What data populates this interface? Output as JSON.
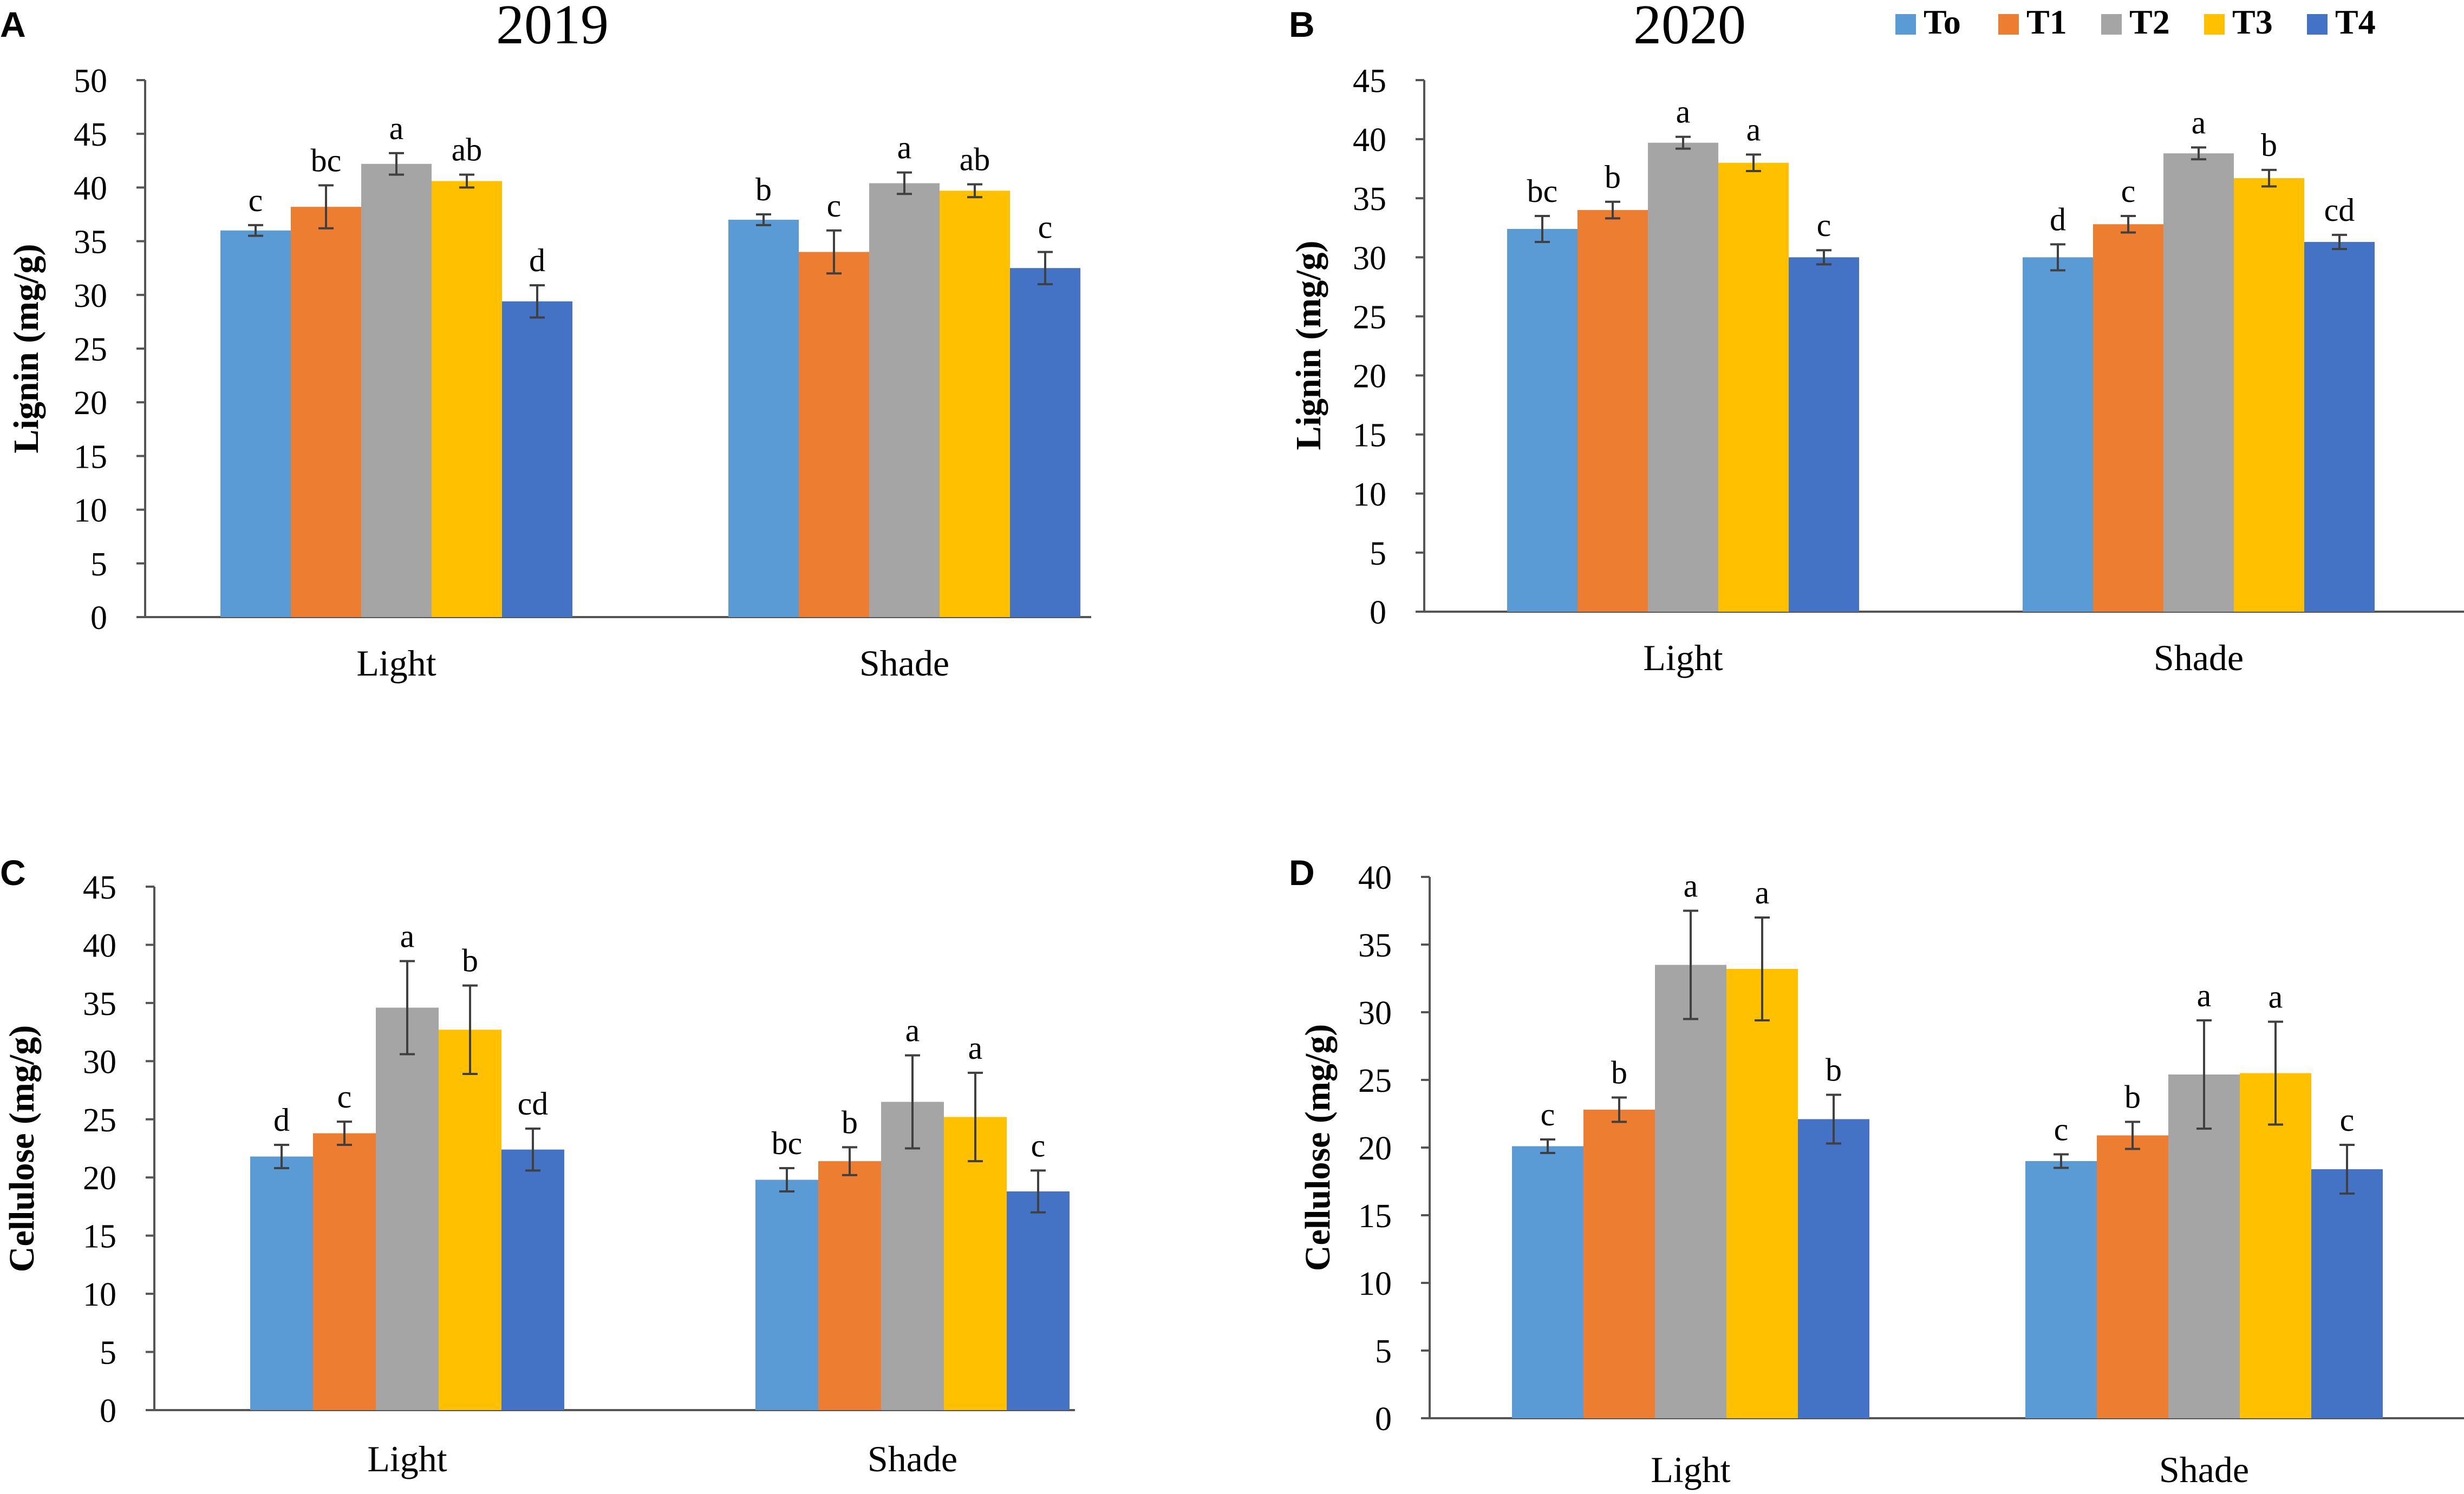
{
  "legend": {
    "entries": [
      {
        "label": "To",
        "color": "#5B9BD5"
      },
      {
        "label": "T1",
        "color": "#ED7D31"
      },
      {
        "label": "T2",
        "color": "#A5A5A5"
      },
      {
        "label": "T3",
        "color": "#FFC000"
      },
      {
        "label": "T4",
        "color": "#4472C4"
      }
    ]
  },
  "chart_data": [
    {
      "panel": "A",
      "type": "bar",
      "title": "2019",
      "xlabel": "",
      "ylabel": "Lignin (mg/g)",
      "ylim": [
        0,
        50
      ],
      "yticks": [
        0,
        5,
        10,
        15,
        20,
        25,
        30,
        35,
        40,
        45,
        50
      ],
      "categories": [
        "Light",
        "Shade"
      ],
      "series": [
        {
          "name": "To",
          "values": [
            36.0,
            37.0
          ],
          "errors": [
            0.5,
            0.5
          ],
          "letters": [
            "c",
            "b"
          ]
        },
        {
          "name": "T1",
          "values": [
            38.2,
            34.0
          ],
          "errors": [
            2.0,
            2.0
          ],
          "letters": [
            "bc",
            "c"
          ]
        },
        {
          "name": "T2",
          "values": [
            42.2,
            40.4
          ],
          "errors": [
            1.0,
            1.0
          ],
          "letters": [
            "a",
            "a"
          ]
        },
        {
          "name": "T3",
          "values": [
            40.6,
            39.7
          ],
          "errors": [
            0.6,
            0.6
          ],
          "letters": [
            "ab",
            "ab"
          ]
        },
        {
          "name": "T4",
          "values": [
            29.4,
            32.5
          ],
          "errors": [
            1.5,
            1.5
          ],
          "letters": [
            "d",
            "c"
          ]
        }
      ]
    },
    {
      "panel": "B",
      "type": "bar",
      "title": "2020",
      "xlabel": "",
      "ylabel": "Lignin (mg/g)",
      "ylim": [
        0,
        45
      ],
      "yticks": [
        0,
        5,
        10,
        15,
        20,
        25,
        30,
        35,
        40,
        45
      ],
      "categories": [
        "Light",
        "Shade"
      ],
      "series": [
        {
          "name": "To",
          "values": [
            32.4,
            30.0
          ],
          "errors": [
            1.1,
            1.1
          ],
          "letters": [
            "bc",
            "d"
          ]
        },
        {
          "name": "T1",
          "values": [
            34.0,
            32.8
          ],
          "errors": [
            0.7,
            0.7
          ],
          "letters": [
            "b",
            "c"
          ]
        },
        {
          "name": "T2",
          "values": [
            39.7,
            38.8
          ],
          "errors": [
            0.5,
            0.5
          ],
          "letters": [
            "a",
            "a"
          ]
        },
        {
          "name": "T3",
          "values": [
            38.0,
            36.7
          ],
          "errors": [
            0.7,
            0.7
          ],
          "letters": [
            "a",
            "b"
          ]
        },
        {
          "name": "T4",
          "values": [
            30.0,
            31.3
          ],
          "errors": [
            0.6,
            0.6
          ],
          "letters": [
            "c",
            "cd"
          ]
        }
      ]
    },
    {
      "panel": "C",
      "type": "bar",
      "title": "",
      "xlabel": "",
      "ylabel": "Cellulose (mg/g)",
      "ylim": [
        0,
        45
      ],
      "yticks": [
        0,
        5,
        10,
        15,
        20,
        25,
        30,
        35,
        40,
        45
      ],
      "categories": [
        "Light",
        "Shade"
      ],
      "series": [
        {
          "name": "To",
          "values": [
            21.8,
            19.8
          ],
          "errors": [
            1.0,
            1.0
          ],
          "letters": [
            "d",
            "bc"
          ]
        },
        {
          "name": "T1",
          "values": [
            23.8,
            21.4
          ],
          "errors": [
            1.0,
            1.2
          ],
          "letters": [
            "c",
            "b"
          ]
        },
        {
          "name": "T2",
          "values": [
            34.6,
            26.5
          ],
          "errors": [
            4.0,
            4.0
          ],
          "letters": [
            "a",
            "a"
          ]
        },
        {
          "name": "T3",
          "values": [
            32.7,
            25.2
          ],
          "errors": [
            3.8,
            3.8
          ],
          "letters": [
            "b",
            "a"
          ]
        },
        {
          "name": "T4",
          "values": [
            22.4,
            18.8
          ],
          "errors": [
            1.8,
            1.8
          ],
          "letters": [
            "cd",
            "c"
          ]
        }
      ]
    },
    {
      "panel": "D",
      "type": "bar",
      "title": "",
      "xlabel": "",
      "ylabel": "Cellulose (mg/g)",
      "ylim": [
        0,
        40
      ],
      "yticks": [
        0,
        5,
        10,
        15,
        20,
        25,
        30,
        35,
        40
      ],
      "categories": [
        "Light",
        "Shade"
      ],
      "series": [
        {
          "name": "To",
          "values": [
            20.1,
            19.0
          ],
          "errors": [
            0.5,
            0.5
          ],
          "letters": [
            "c",
            "c"
          ]
        },
        {
          "name": "T1",
          "values": [
            22.8,
            20.9
          ],
          "errors": [
            0.9,
            1.0
          ],
          "letters": [
            "b",
            "b"
          ]
        },
        {
          "name": "T2",
          "values": [
            33.5,
            25.4
          ],
          "errors": [
            4.0,
            4.0
          ],
          "letters": [
            "a",
            "a"
          ]
        },
        {
          "name": "T3",
          "values": [
            33.2,
            25.5
          ],
          "errors": [
            3.8,
            3.8
          ],
          "letters": [
            "a",
            "a"
          ]
        },
        {
          "name": "T4",
          "values": [
            22.1,
            18.4
          ],
          "errors": [
            1.8,
            1.8
          ],
          "letters": [
            "b",
            "c"
          ]
        }
      ]
    }
  ]
}
